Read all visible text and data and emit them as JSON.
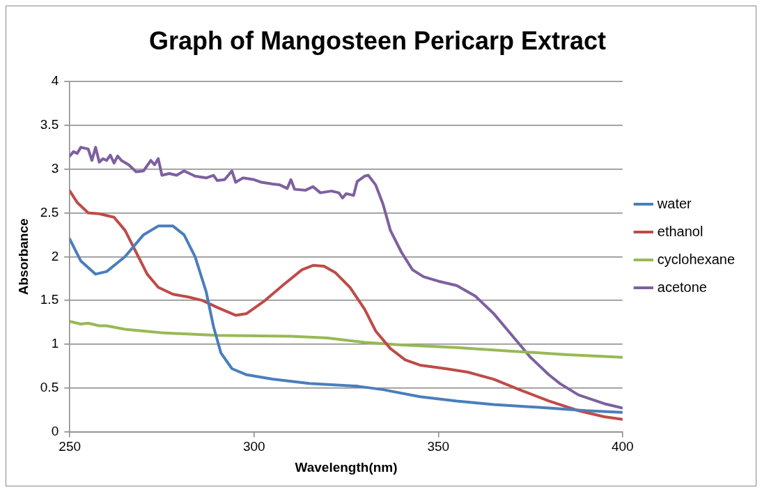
{
  "chart_data": {
    "type": "line",
    "title": "Graph of Mangosteen Pericarp Extract",
    "xlabel": "Wavelength(nm)",
    "ylabel": "Absorbance",
    "xlim": [
      250,
      400
    ],
    "xticks": [
      250,
      300,
      350,
      400
    ],
    "ylim": [
      0,
      4
    ],
    "yticks": [
      0,
      0.5,
      1,
      1.5,
      2,
      2.5,
      3,
      3.5,
      4
    ],
    "grid": "y",
    "legend": "right",
    "marker": "none",
    "line_style": "solid",
    "series": [
      {
        "name": "water",
        "color": "#4a7ebb",
        "x": [
          250,
          253,
          257,
          260,
          265,
          270,
          274,
          278,
          281,
          284,
          287,
          289,
          291,
          294,
          298,
          305,
          315,
          328,
          335,
          345,
          355,
          365,
          380,
          390,
          400
        ],
        "values": [
          2.2,
          1.95,
          1.8,
          1.83,
          2.0,
          2.25,
          2.35,
          2.35,
          2.25,
          2.0,
          1.6,
          1.2,
          0.9,
          0.72,
          0.65,
          0.6,
          0.55,
          0.52,
          0.48,
          0.4,
          0.35,
          0.31,
          0.27,
          0.24,
          0.22
        ]
      },
      {
        "name": "ethanol",
        "color": "#be4b48",
        "x": [
          250,
          252,
          255,
          258,
          262,
          265,
          268,
          271,
          274,
          278,
          282,
          286,
          290,
          295,
          298,
          303,
          308,
          313,
          316,
          319,
          322,
          326,
          330,
          333,
          337,
          341,
          345,
          352,
          358,
          365,
          372,
          380,
          388,
          395,
          400
        ],
        "values": [
          2.75,
          2.62,
          2.5,
          2.49,
          2.45,
          2.3,
          2.05,
          1.8,
          1.65,
          1.57,
          1.54,
          1.5,
          1.42,
          1.33,
          1.35,
          1.5,
          1.68,
          1.85,
          1.9,
          1.89,
          1.82,
          1.65,
          1.4,
          1.15,
          0.95,
          0.82,
          0.76,
          0.72,
          0.68,
          0.6,
          0.48,
          0.35,
          0.24,
          0.17,
          0.14
        ]
      },
      {
        "name": "cyclohexane",
        "color": "#98b954",
        "x": [
          250,
          253,
          255,
          258,
          260,
          265,
          275,
          290,
          310,
          320,
          330,
          340,
          355,
          370,
          385,
          400
        ],
        "values": [
          1.26,
          1.23,
          1.24,
          1.21,
          1.21,
          1.17,
          1.13,
          1.1,
          1.09,
          1.07,
          1.02,
          0.99,
          0.96,
          0.92,
          0.88,
          0.85
        ]
      },
      {
        "name": "acetone",
        "color": "#7d60a0",
        "x": [
          250,
          251,
          252,
          253,
          255,
          256,
          257,
          258,
          259,
          260,
          261,
          262,
          263,
          264,
          266,
          268,
          270,
          272,
          273,
          274,
          275,
          277,
          279,
          281,
          284,
          287,
          289,
          290,
          292,
          294,
          295,
          297,
          300,
          302,
          305,
          307,
          309,
          310,
          311,
          314,
          316,
          318,
          321,
          323,
          324,
          325,
          327,
          328,
          330,
          331,
          333,
          335,
          337,
          340,
          343,
          346,
          350,
          355,
          360,
          365,
          370,
          375,
          380,
          383,
          388,
          395,
          400
        ],
        "values": [
          3.15,
          3.2,
          3.18,
          3.25,
          3.23,
          3.1,
          3.25,
          3.08,
          3.12,
          3.1,
          3.16,
          3.07,
          3.15,
          3.1,
          3.05,
          2.97,
          2.98,
          3.1,
          3.05,
          3.12,
          2.93,
          2.95,
          2.93,
          2.98,
          2.92,
          2.9,
          2.93,
          2.87,
          2.88,
          2.98,
          2.85,
          2.9,
          2.88,
          2.85,
          2.83,
          2.82,
          2.78,
          2.88,
          2.77,
          2.76,
          2.8,
          2.73,
          2.75,
          2.73,
          2.67,
          2.72,
          2.7,
          2.86,
          2.92,
          2.93,
          2.82,
          2.6,
          2.3,
          2.05,
          1.85,
          1.77,
          1.72,
          1.67,
          1.55,
          1.35,
          1.1,
          0.85,
          0.65,
          0.55,
          0.42,
          0.32,
          0.27
        ]
      }
    ]
  }
}
